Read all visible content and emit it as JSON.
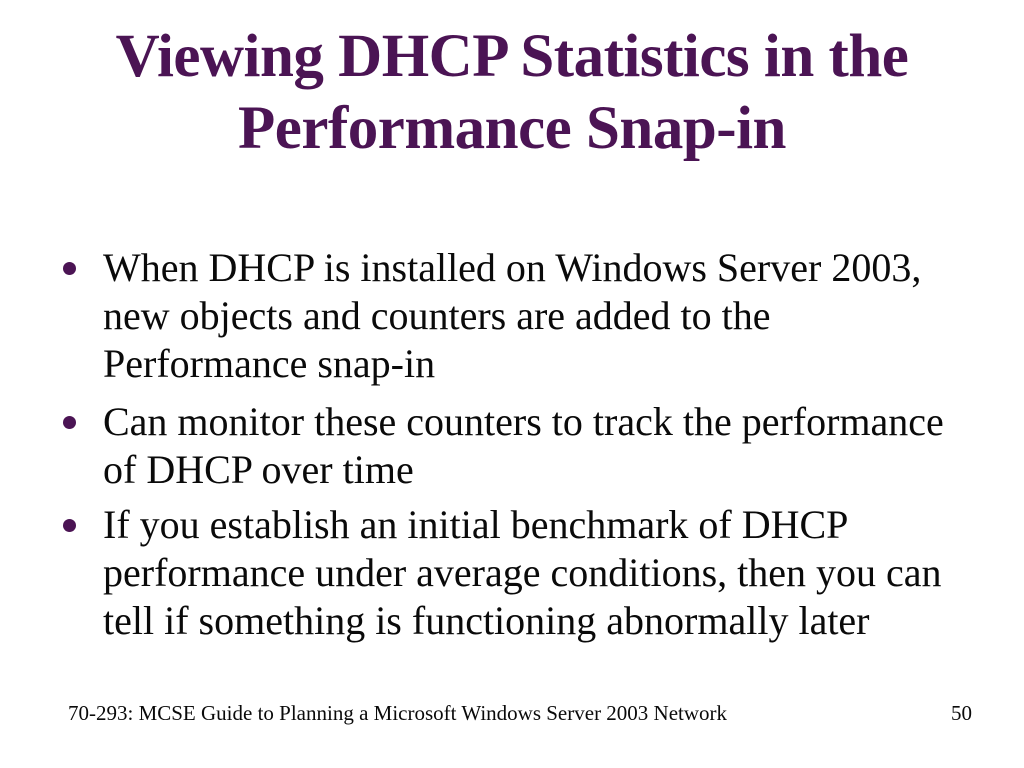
{
  "slide": {
    "background_color": "#FFFFFF",
    "title": {
      "text": "Viewing DHCP Statistics in the Performance Snap-in",
      "lines": [
        "Viewing DHCP Statistics in the",
        "Performance Snap-in"
      ],
      "color": "#4B1454"
    },
    "bullets": {
      "dot_color": "#4B1454",
      "text_color": "#0A0A0A",
      "items": [
        {
          "text": "When DHCP is installed on Windows Server 2003, new objects and counters are added to the Performance snap-in",
          "lines": [
            "When DHCP is installed on Windows Server 2003,",
            "new objects and counters are added to the",
            "Performance snap-in"
          ]
        },
        {
          "text": "Can monitor these counters to track the performance of DHCP over time",
          "lines": [
            "Can monitor these counters to track the performance",
            "of DHCP over time"
          ]
        },
        {
          "text": "If you establish an initial benchmark of DHCP performance under average conditions, then you can tell if something is functioning abnormally later",
          "lines": [
            "If you establish an initial benchmark of DHCP",
            "performance under average conditions, then you can",
            "tell if something is functioning abnormally later"
          ]
        }
      ]
    },
    "footer": {
      "course_text": "70-293: MCSE Guide to Planning a Microsoft Windows Server 2003 Network",
      "page_number": "50",
      "text_color": "#0A0A0A"
    }
  }
}
